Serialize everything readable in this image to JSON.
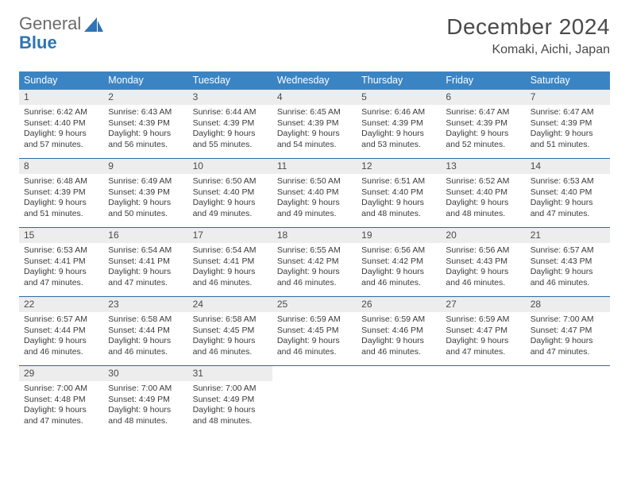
{
  "logo": {
    "general": "General",
    "blue": "Blue"
  },
  "title": "December 2024",
  "location": "Komaki, Aichi, Japan",
  "colors": {
    "header_bg": "#3b84c4",
    "week_border": "#2a6aa6",
    "daynum_bg": "#ededed",
    "text": "#3a3a3a",
    "logo_gray": "#6b6b6b",
    "logo_blue": "#2f74b5"
  },
  "dow": [
    "Sunday",
    "Monday",
    "Tuesday",
    "Wednesday",
    "Thursday",
    "Friday",
    "Saturday"
  ],
  "weeks": [
    [
      {
        "n": "1",
        "sunrise": "6:42 AM",
        "sunset": "4:40 PM",
        "dl": "9 hours and 57 minutes."
      },
      {
        "n": "2",
        "sunrise": "6:43 AM",
        "sunset": "4:39 PM",
        "dl": "9 hours and 56 minutes."
      },
      {
        "n": "3",
        "sunrise": "6:44 AM",
        "sunset": "4:39 PM",
        "dl": "9 hours and 55 minutes."
      },
      {
        "n": "4",
        "sunrise": "6:45 AM",
        "sunset": "4:39 PM",
        "dl": "9 hours and 54 minutes."
      },
      {
        "n": "5",
        "sunrise": "6:46 AM",
        "sunset": "4:39 PM",
        "dl": "9 hours and 53 minutes."
      },
      {
        "n": "6",
        "sunrise": "6:47 AM",
        "sunset": "4:39 PM",
        "dl": "9 hours and 52 minutes."
      },
      {
        "n": "7",
        "sunrise": "6:47 AM",
        "sunset": "4:39 PM",
        "dl": "9 hours and 51 minutes."
      }
    ],
    [
      {
        "n": "8",
        "sunrise": "6:48 AM",
        "sunset": "4:39 PM",
        "dl": "9 hours and 51 minutes."
      },
      {
        "n": "9",
        "sunrise": "6:49 AM",
        "sunset": "4:39 PM",
        "dl": "9 hours and 50 minutes."
      },
      {
        "n": "10",
        "sunrise": "6:50 AM",
        "sunset": "4:40 PM",
        "dl": "9 hours and 49 minutes."
      },
      {
        "n": "11",
        "sunrise": "6:50 AM",
        "sunset": "4:40 PM",
        "dl": "9 hours and 49 minutes."
      },
      {
        "n": "12",
        "sunrise": "6:51 AM",
        "sunset": "4:40 PM",
        "dl": "9 hours and 48 minutes."
      },
      {
        "n": "13",
        "sunrise": "6:52 AM",
        "sunset": "4:40 PM",
        "dl": "9 hours and 48 minutes."
      },
      {
        "n": "14",
        "sunrise": "6:53 AM",
        "sunset": "4:40 PM",
        "dl": "9 hours and 47 minutes."
      }
    ],
    [
      {
        "n": "15",
        "sunrise": "6:53 AM",
        "sunset": "4:41 PM",
        "dl": "9 hours and 47 minutes."
      },
      {
        "n": "16",
        "sunrise": "6:54 AM",
        "sunset": "4:41 PM",
        "dl": "9 hours and 47 minutes."
      },
      {
        "n": "17",
        "sunrise": "6:54 AM",
        "sunset": "4:41 PM",
        "dl": "9 hours and 46 minutes."
      },
      {
        "n": "18",
        "sunrise": "6:55 AM",
        "sunset": "4:42 PM",
        "dl": "9 hours and 46 minutes."
      },
      {
        "n": "19",
        "sunrise": "6:56 AM",
        "sunset": "4:42 PM",
        "dl": "9 hours and 46 minutes."
      },
      {
        "n": "20",
        "sunrise": "6:56 AM",
        "sunset": "4:43 PM",
        "dl": "9 hours and 46 minutes."
      },
      {
        "n": "21",
        "sunrise": "6:57 AM",
        "sunset": "4:43 PM",
        "dl": "9 hours and 46 minutes."
      }
    ],
    [
      {
        "n": "22",
        "sunrise": "6:57 AM",
        "sunset": "4:44 PM",
        "dl": "9 hours and 46 minutes."
      },
      {
        "n": "23",
        "sunrise": "6:58 AM",
        "sunset": "4:44 PM",
        "dl": "9 hours and 46 minutes."
      },
      {
        "n": "24",
        "sunrise": "6:58 AM",
        "sunset": "4:45 PM",
        "dl": "9 hours and 46 minutes."
      },
      {
        "n": "25",
        "sunrise": "6:59 AM",
        "sunset": "4:45 PM",
        "dl": "9 hours and 46 minutes."
      },
      {
        "n": "26",
        "sunrise": "6:59 AM",
        "sunset": "4:46 PM",
        "dl": "9 hours and 46 minutes."
      },
      {
        "n": "27",
        "sunrise": "6:59 AM",
        "sunset": "4:47 PM",
        "dl": "9 hours and 47 minutes."
      },
      {
        "n": "28",
        "sunrise": "7:00 AM",
        "sunset": "4:47 PM",
        "dl": "9 hours and 47 minutes."
      }
    ],
    [
      {
        "n": "29",
        "sunrise": "7:00 AM",
        "sunset": "4:48 PM",
        "dl": "9 hours and 47 minutes."
      },
      {
        "n": "30",
        "sunrise": "7:00 AM",
        "sunset": "4:49 PM",
        "dl": "9 hours and 48 minutes."
      },
      {
        "n": "31",
        "sunrise": "7:00 AM",
        "sunset": "4:49 PM",
        "dl": "9 hours and 48 minutes."
      },
      null,
      null,
      null,
      null
    ]
  ],
  "labels": {
    "sunrise": "Sunrise: ",
    "sunset": "Sunset: ",
    "daylight": "Daylight: "
  }
}
